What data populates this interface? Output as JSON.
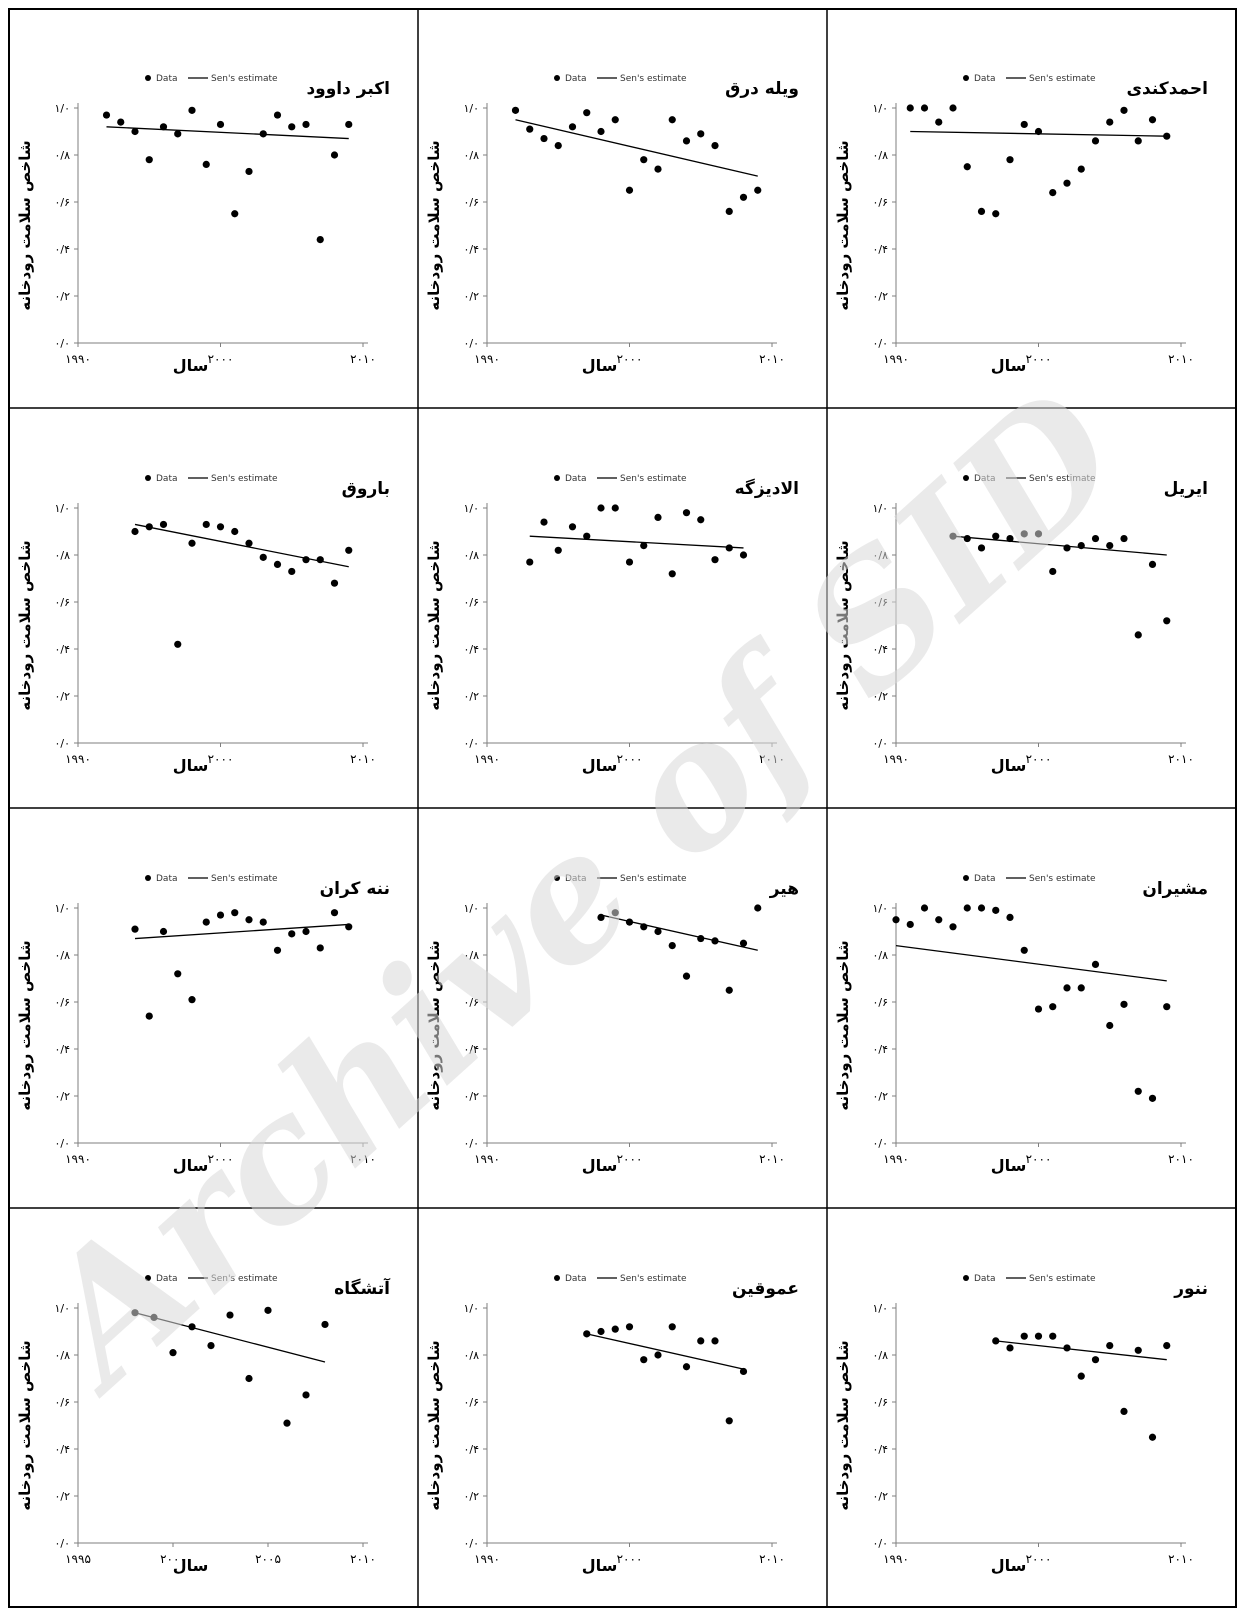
{
  "figure": {
    "watermark": "Archive of SID",
    "legend": {
      "data_label": "Data",
      "trend_label": "Sen's estimate"
    },
    "ylabel": "شاخص سلامت رودخانه",
    "xlabel": "سال",
    "yticks": [
      "۰/۰",
      "۰/۲",
      "۰/۴",
      "۰/۶",
      "۰/۸",
      "۱/۰"
    ],
    "colors": {
      "border": "#000000",
      "marker": "#000000",
      "axis": "#7f7f7f",
      "watermark": "#d9d9d9"
    }
  },
  "chart_data": [
    {
      "type": "scatter",
      "title": "احمدکندی",
      "xlim": [
        1990,
        2010
      ],
      "ylim": [
        0,
        1
      ],
      "xticks": [
        1990,
        2000,
        2010
      ],
      "xtick_labels": [
        "۱۹۹۰",
        "۲۰۰۰",
        "۲۰۱۰"
      ],
      "points": [
        [
          1991,
          1.0
        ],
        [
          1992,
          1.0
        ],
        [
          1993,
          0.94
        ],
        [
          1994,
          1.0
        ],
        [
          1995,
          0.75
        ],
        [
          1996,
          0.56
        ],
        [
          1997,
          0.55
        ],
        [
          1998,
          0.78
        ],
        [
          1999,
          0.93
        ],
        [
          2000,
          0.9
        ],
        [
          2001,
          0.64
        ],
        [
          2002,
          0.68
        ],
        [
          2003,
          0.74
        ],
        [
          2004,
          0.86
        ],
        [
          2005,
          0.94
        ],
        [
          2006,
          0.99
        ],
        [
          2007,
          0.86
        ],
        [
          2008,
          0.95
        ],
        [
          2009,
          0.88
        ]
      ],
      "trend": [
        [
          1991,
          0.9
        ],
        [
          2009,
          0.88
        ]
      ]
    },
    {
      "type": "scatter",
      "title": "ویله درق",
      "xlim": [
        1990,
        2010
      ],
      "ylim": [
        0,
        1
      ],
      "xticks": [
        1990,
        2000,
        2010
      ],
      "xtick_labels": [
        "۱۹۹۰",
        "۲۰۰۰",
        "۲۰۱۰"
      ],
      "points": [
        [
          1992,
          0.99
        ],
        [
          1993,
          0.91
        ],
        [
          1994,
          0.87
        ],
        [
          1995,
          0.84
        ],
        [
          1996,
          0.92
        ],
        [
          1997,
          0.98
        ],
        [
          1998,
          0.9
        ],
        [
          1999,
          0.95
        ],
        [
          2000,
          0.65
        ],
        [
          2001,
          0.78
        ],
        [
          2002,
          0.74
        ],
        [
          2003,
          0.95
        ],
        [
          2004,
          0.86
        ],
        [
          2005,
          0.89
        ],
        [
          2006,
          0.84
        ],
        [
          2007,
          0.56
        ],
        [
          2008,
          0.62
        ],
        [
          2009,
          0.65
        ]
      ],
      "trend": [
        [
          1992,
          0.95
        ],
        [
          2009,
          0.71
        ]
      ]
    },
    {
      "type": "scatter",
      "title": "اکبر داوود",
      "xlim": [
        1990,
        2010
      ],
      "ylim": [
        0,
        1
      ],
      "xticks": [
        1990,
        2000,
        2010
      ],
      "xtick_labels": [
        "۱۹۹۰",
        "۲۰۰۰",
        "۲۰۱۰"
      ],
      "points": [
        [
          1992,
          0.97
        ],
        [
          1993,
          0.94
        ],
        [
          1994,
          0.9
        ],
        [
          1995,
          0.78
        ],
        [
          1996,
          0.92
        ],
        [
          1997,
          0.89
        ],
        [
          1998,
          0.99
        ],
        [
          1999,
          0.76
        ],
        [
          2000,
          0.93
        ],
        [
          2001,
          0.55
        ],
        [
          2002,
          0.73
        ],
        [
          2003,
          0.89
        ],
        [
          2004,
          0.97
        ],
        [
          2005,
          0.92
        ],
        [
          2006,
          0.93
        ],
        [
          2007,
          0.44
        ],
        [
          2008,
          0.8
        ],
        [
          2009,
          0.93
        ]
      ],
      "trend": [
        [
          1992,
          0.92
        ],
        [
          2009,
          0.87
        ]
      ]
    },
    {
      "type": "scatter",
      "title": "ایریل",
      "xlim": [
        1990,
        2010
      ],
      "ylim": [
        0,
        1
      ],
      "xticks": [
        1990,
        2000,
        2010
      ],
      "xtick_labels": [
        "۱۹۹۰",
        "۲۰۰۰",
        "۲۰۱۰"
      ],
      "points": [
        [
          1994,
          0.88
        ],
        [
          1995,
          0.87
        ],
        [
          1996,
          0.83
        ],
        [
          1997,
          0.88
        ],
        [
          1998,
          0.87
        ],
        [
          1999,
          0.89
        ],
        [
          2000,
          0.89
        ],
        [
          2001,
          0.73
        ],
        [
          2002,
          0.83
        ],
        [
          2003,
          0.84
        ],
        [
          2004,
          0.87
        ],
        [
          2005,
          0.84
        ],
        [
          2006,
          0.87
        ],
        [
          2007,
          0.46
        ],
        [
          2008,
          0.76
        ],
        [
          2009,
          0.52
        ]
      ],
      "trend": [
        [
          1994,
          0.88
        ],
        [
          2009,
          0.8
        ]
      ]
    },
    {
      "type": "scatter",
      "title": "الادیزگه",
      "xlim": [
        1990,
        2010
      ],
      "ylim": [
        0,
        1
      ],
      "xticks": [
        1990,
        2000,
        2010
      ],
      "xtick_labels": [
        "۱۹۹۰",
        "۲۰۰۰",
        "۲۰۱۰"
      ],
      "points": [
        [
          1993,
          0.77
        ],
        [
          1994,
          0.94
        ],
        [
          1995,
          0.82
        ],
        [
          1996,
          0.92
        ],
        [
          1997,
          0.88
        ],
        [
          1998,
          1.0
        ],
        [
          1999,
          1.0
        ],
        [
          2000,
          0.77
        ],
        [
          2001,
          0.84
        ],
        [
          2002,
          0.96
        ],
        [
          2003,
          0.72
        ],
        [
          2004,
          0.98
        ],
        [
          2005,
          0.95
        ],
        [
          2006,
          0.78
        ],
        [
          2007,
          0.83
        ],
        [
          2008,
          0.8
        ]
      ],
      "trend": [
        [
          1993,
          0.88
        ],
        [
          2008,
          0.83
        ]
      ]
    },
    {
      "type": "scatter",
      "title": "باروق",
      "xlim": [
        1990,
        2010
      ],
      "ylim": [
        0,
        1
      ],
      "xticks": [
        1990,
        2000,
        2010
      ],
      "xtick_labels": [
        "۱۹۹۰",
        "۲۰۰۰",
        "۲۰۱۰"
      ],
      "points": [
        [
          1994,
          0.9
        ],
        [
          1995,
          0.92
        ],
        [
          1996,
          0.93
        ],
        [
          1997,
          0.42
        ],
        [
          1998,
          0.85
        ],
        [
          1999,
          0.93
        ],
        [
          2000,
          0.92
        ],
        [
          2001,
          0.9
        ],
        [
          2002,
          0.85
        ],
        [
          2003,
          0.79
        ],
        [
          2004,
          0.76
        ],
        [
          2005,
          0.73
        ],
        [
          2006,
          0.78
        ],
        [
          2007,
          0.78
        ],
        [
          2008,
          0.68
        ],
        [
          2009,
          0.82
        ]
      ],
      "trend": [
        [
          1994,
          0.93
        ],
        [
          2009,
          0.75
        ]
      ]
    },
    {
      "type": "scatter",
      "title": "مشیران",
      "xlim": [
        1990,
        2010
      ],
      "ylim": [
        0,
        1
      ],
      "xticks": [
        1990,
        2000,
        2010
      ],
      "xtick_labels": [
        "۱۹۹۰",
        "۲۰۰۰",
        "۲۰۱۰"
      ],
      "points": [
        [
          1990,
          0.95
        ],
        [
          1991,
          0.93
        ],
        [
          1992,
          1.0
        ],
        [
          1993,
          0.95
        ],
        [
          1994,
          0.92
        ],
        [
          1995,
          1.0
        ],
        [
          1996,
          1.0
        ],
        [
          1997,
          0.99
        ],
        [
          1998,
          0.96
        ],
        [
          1999,
          0.82
        ],
        [
          2000,
          0.57
        ],
        [
          2001,
          0.58
        ],
        [
          2002,
          0.66
        ],
        [
          2003,
          0.66
        ],
        [
          2004,
          0.76
        ],
        [
          2005,
          0.5
        ],
        [
          2006,
          0.59
        ],
        [
          2007,
          0.22
        ],
        [
          2008,
          0.19
        ],
        [
          2009,
          0.58
        ]
      ],
      "trend": [
        [
          1990,
          0.84
        ],
        [
          2009,
          0.69
        ]
      ]
    },
    {
      "type": "scatter",
      "title": "هیر",
      "xlim": [
        1990,
        2010
      ],
      "ylim": [
        0,
        1
      ],
      "xticks": [
        1990,
        2000,
        2010
      ],
      "xtick_labels": [
        "۱۹۹۰",
        "۲۰۰۰",
        "۲۰۱۰"
      ],
      "points": [
        [
          1998,
          0.96
        ],
        [
          1999,
          0.98
        ],
        [
          2000,
          0.94
        ],
        [
          2001,
          0.92
        ],
        [
          2002,
          0.9
        ],
        [
          2003,
          0.84
        ],
        [
          2004,
          0.71
        ],
        [
          2005,
          0.87
        ],
        [
          2006,
          0.86
        ],
        [
          2007,
          0.65
        ],
        [
          2008,
          0.85
        ],
        [
          2009,
          1.0
        ]
      ],
      "trend": [
        [
          1998,
          0.97
        ],
        [
          2009,
          0.82
        ]
      ]
    },
    {
      "type": "scatter",
      "title": "ننه کران",
      "xlim": [
        1990,
        2010
      ],
      "ylim": [
        0,
        1
      ],
      "xticks": [
        1990,
        2000,
        2010
      ],
      "xtick_labels": [
        "۱۹۹۰",
        "۲۰۰۰",
        "۲۰۱۰"
      ],
      "points": [
        [
          1994,
          0.91
        ],
        [
          1995,
          0.54
        ],
        [
          1996,
          0.9
        ],
        [
          1997,
          0.72
        ],
        [
          1998,
          0.61
        ],
        [
          1999,
          0.94
        ],
        [
          2000,
          0.97
        ],
        [
          2001,
          0.98
        ],
        [
          2002,
          0.95
        ],
        [
          2003,
          0.94
        ],
        [
          2004,
          0.82
        ],
        [
          2005,
          0.89
        ],
        [
          2006,
          0.9
        ],
        [
          2007,
          0.83
        ],
        [
          2008,
          0.98
        ],
        [
          2009,
          0.92
        ]
      ],
      "trend": [
        [
          1994,
          0.87
        ],
        [
          2009,
          0.93
        ]
      ]
    },
    {
      "type": "scatter",
      "title": "ننور",
      "xlim": [
        1990,
        2010
      ],
      "ylim": [
        0,
        1
      ],
      "xticks": [
        1990,
        2000,
        2010
      ],
      "xtick_labels": [
        "۱۹۹۰",
        "۲۰۰۰",
        "۲۰۱۰"
      ],
      "points": [
        [
          1997,
          0.86
        ],
        [
          1998,
          0.83
        ],
        [
          1999,
          0.88
        ],
        [
          2000,
          0.88
        ],
        [
          2001,
          0.88
        ],
        [
          2002,
          0.83
        ],
        [
          2003,
          0.71
        ],
        [
          2004,
          0.78
        ],
        [
          2005,
          0.84
        ],
        [
          2006,
          0.56
        ],
        [
          2007,
          0.82
        ],
        [
          2008,
          0.45
        ],
        [
          2009,
          0.84
        ]
      ],
      "trend": [
        [
          1997,
          0.86
        ],
        [
          2009,
          0.78
        ]
      ]
    },
    {
      "type": "scatter",
      "title": "عموقین",
      "xlim": [
        1990,
        2010
      ],
      "ylim": [
        0,
        1
      ],
      "xticks": [
        1990,
        2000,
        2010
      ],
      "xtick_labels": [
        "۱۹۹۰",
        "۲۰۰۰",
        "۲۰۱۰"
      ],
      "points": [
        [
          1997,
          0.89
        ],
        [
          1998,
          0.9
        ],
        [
          1999,
          0.91
        ],
        [
          2000,
          0.92
        ],
        [
          2001,
          0.78
        ],
        [
          2002,
          0.8
        ],
        [
          2003,
          0.92
        ],
        [
          2004,
          0.75
        ],
        [
          2005,
          0.86
        ],
        [
          2006,
          0.86
        ],
        [
          2007,
          0.52
        ],
        [
          2008,
          0.73
        ]
      ],
      "trend": [
        [
          1997,
          0.89
        ],
        [
          2008,
          0.74
        ]
      ]
    },
    {
      "type": "scatter",
      "title": "آتشگاه",
      "xlim": [
        1995,
        2010
      ],
      "ylim": [
        0,
        1
      ],
      "xticks": [
        1995,
        2000,
        2005,
        2010
      ],
      "xtick_labels": [
        "۱۹۹۵",
        "۲۰۰۰",
        "۲۰۰۵",
        "۲۰۱۰"
      ],
      "points": [
        [
          1998,
          0.98
        ],
        [
          1999,
          0.96
        ],
        [
          2000,
          0.81
        ],
        [
          2001,
          0.92
        ],
        [
          2002,
          0.84
        ],
        [
          2003,
          0.97
        ],
        [
          2004,
          0.7
        ],
        [
          2005,
          0.99
        ],
        [
          2006,
          0.51
        ],
        [
          2007,
          0.63
        ],
        [
          2008,
          0.93
        ]
      ],
      "trend": [
        [
          1998,
          0.98
        ],
        [
          2008,
          0.77
        ]
      ]
    }
  ]
}
